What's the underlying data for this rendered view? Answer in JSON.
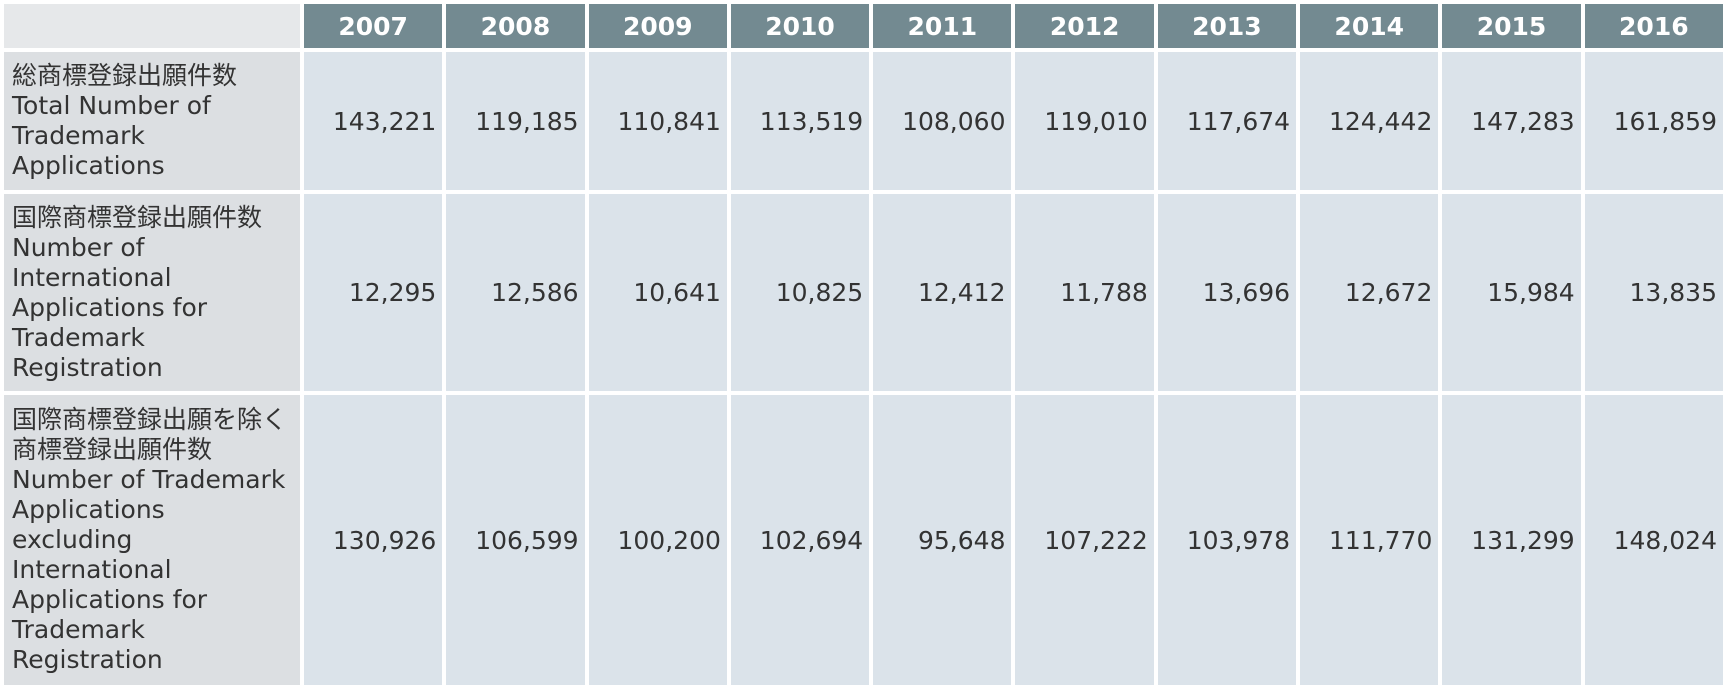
{
  "table": {
    "header": [
      "2007",
      "2008",
      "2009",
      "2010",
      "2011",
      "2012",
      "2013",
      "2014",
      "2015",
      "2016"
    ],
    "rows": [
      {
        "label_ja": "総商標登録出願件数",
        "label_en": "Total Number of Trademark Applications",
        "values": [
          "143,221",
          "119,185",
          "110,841",
          "113,519",
          "108,060",
          "119,010",
          "117,674",
          "124,442",
          "147,283",
          "161,859"
        ]
      },
      {
        "label_ja": "国際商標登録出願件数",
        "label_en": "Number of International Applications for Trademark Registration",
        "values": [
          "12,295",
          "12,586",
          "10,641",
          "10,825",
          "12,412",
          "11,788",
          "13,696",
          "12,672",
          "15,984",
          "13,835"
        ]
      },
      {
        "label_ja": "国際商標登録出願を除く商標登録出願件数",
        "label_en": "Number of Trademark Applications excluding International Applications for Trademark Registration",
        "values": [
          "130,926",
          "106,599",
          "100,200",
          "102,694",
          "95,648",
          "107,222",
          "103,978",
          "111,770",
          "131,299",
          "148,024"
        ]
      }
    ]
  }
}
